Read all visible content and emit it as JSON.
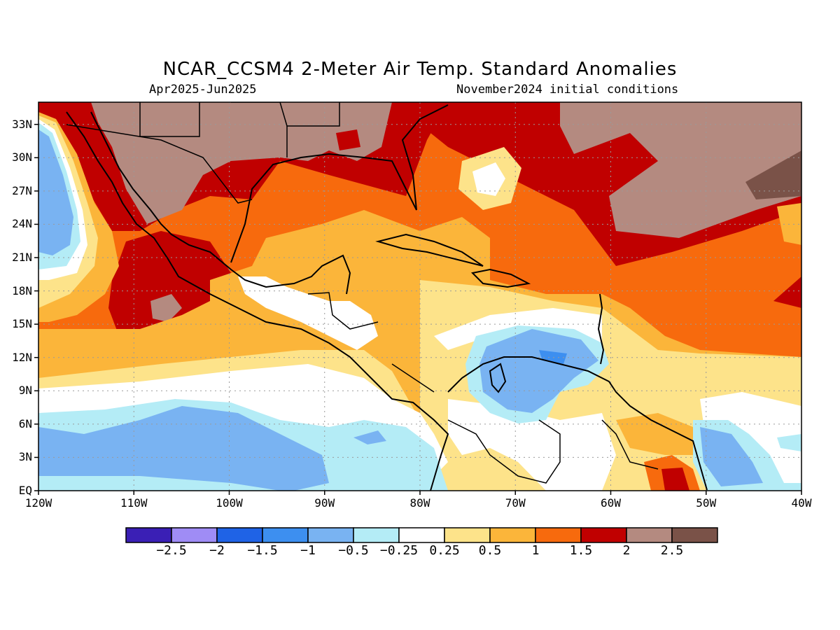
{
  "title": "NCAR_CCSM4 2-Meter Air Temp. Standard Anomalies",
  "period": "Apr2025-Jun2025",
  "initial_conditions": "November2024 initial conditions",
  "map": {
    "lon_range": [
      -120,
      -40
    ],
    "lat_range": [
      0,
      35
    ],
    "lat_labels": [
      "EQ",
      "3N",
      "6N",
      "9N",
      "12N",
      "15N",
      "18N",
      "21N",
      "24N",
      "27N",
      "30N",
      "33N"
    ],
    "lat_values": [
      0,
      3,
      6,
      9,
      12,
      15,
      18,
      21,
      24,
      27,
      30,
      33
    ],
    "lon_labels": [
      "120W",
      "110W",
      "100W",
      "90W",
      "80W",
      "70W",
      "60W",
      "50W",
      "40W"
    ],
    "lon_values": [
      -120,
      -110,
      -100,
      -90,
      -80,
      -70,
      -60,
      -50,
      -40
    ],
    "gridlines": true
  },
  "colorbar": {
    "colors": [
      "#3a1fb5",
      "#9f8cf5",
      "#1f63e6",
      "#3d8ff0",
      "#79b3f2",
      "#b4ecf6",
      "#ffffff",
      "#fde38a",
      "#fbb53a",
      "#f76a0d",
      "#c00000",
      "#b48a80",
      "#7a5248"
    ],
    "labels": [
      "−2.5",
      "−2",
      "−1.5",
      "−1",
      "−0.5",
      "−0.25",
      "0.25",
      "0.5",
      "1",
      "1.5",
      "2",
      "2.5"
    ]
  }
}
